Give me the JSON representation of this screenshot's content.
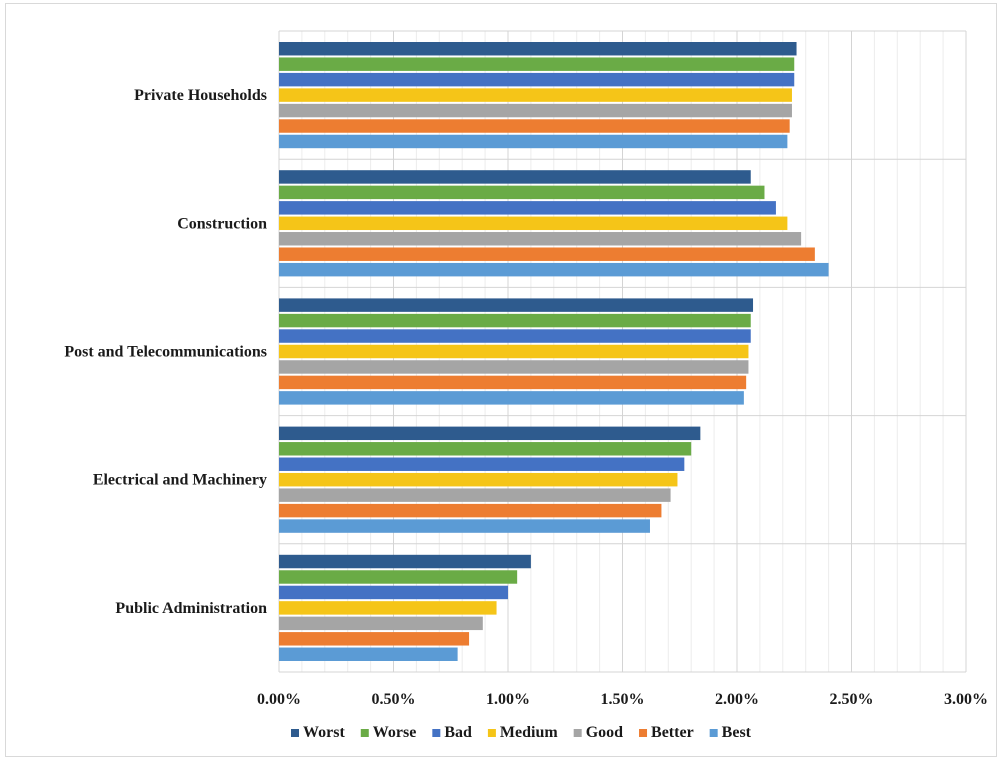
{
  "chart_data": {
    "type": "bar",
    "orientation": "horizontal",
    "categories": [
      "Private Households",
      "Construction",
      "Post and Telecommunications",
      "Electrical and Machinery",
      "Public Administration"
    ],
    "series": [
      {
        "name": "Worst",
        "color": "#2e5b8e",
        "values": [
          2.26,
          2.06,
          2.07,
          1.84,
          1.1
        ]
      },
      {
        "name": "Worse",
        "color": "#6aab46",
        "values": [
          2.25,
          2.12,
          2.06,
          1.8,
          1.04
        ]
      },
      {
        "name": "Bad",
        "color": "#4472c4",
        "values": [
          2.25,
          2.17,
          2.06,
          1.77,
          1.0
        ]
      },
      {
        "name": "Medium",
        "color": "#f5c518",
        "values": [
          2.24,
          2.22,
          2.05,
          1.74,
          0.95
        ]
      },
      {
        "name": "Good",
        "color": "#a5a5a5",
        "values": [
          2.24,
          2.28,
          2.05,
          1.71,
          0.89
        ]
      },
      {
        "name": "Better",
        "color": "#ed7d31",
        "values": [
          2.23,
          2.34,
          2.04,
          1.67,
          0.83
        ]
      },
      {
        "name": "Best",
        "color": "#5b9bd5",
        "values": [
          2.22,
          2.4,
          2.03,
          1.62,
          0.78
        ]
      }
    ],
    "x_ticks": [
      "0.00%",
      "0.50%",
      "1.00%",
      "1.50%",
      "2.00%",
      "2.50%",
      "3.00%"
    ],
    "xlim": [
      0,
      3
    ],
    "unit": "%",
    "title": "",
    "xlabel": "",
    "ylabel": "",
    "grid": true,
    "legend_position": "bottom"
  }
}
